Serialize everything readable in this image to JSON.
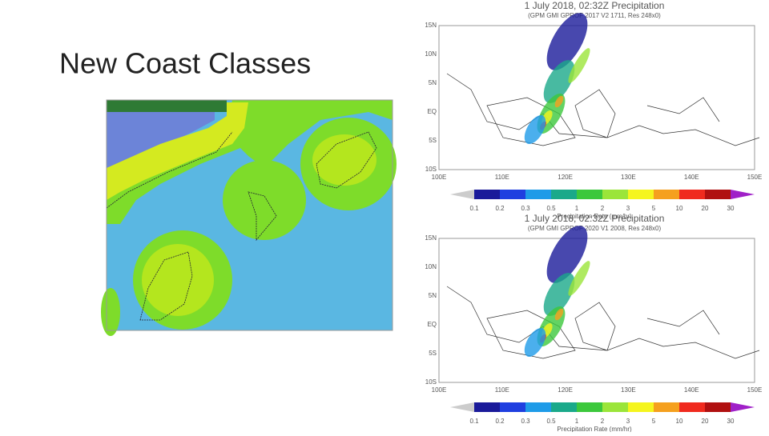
{
  "slide": {
    "title": "New Coast Classes"
  },
  "panels": [
    {
      "title": "1 July 2018, 02:32Z Precipitation",
      "subtitle": "(GPM GMI GPROF 2017 V2 1711, Res 248x0)",
      "lat_labels": [
        "15N",
        "10N",
        "5N",
        "EQ",
        "5S",
        "10S"
      ],
      "lon_labels": [
        "100E",
        "110E",
        "120E",
        "130E",
        "140E",
        "150E"
      ],
      "colorbar_labels": [
        "0.1",
        "0.2",
        "0.3",
        "0.5",
        "1",
        "2",
        "3",
        "5",
        "10",
        "20",
        "30"
      ],
      "colorbar_title": "Precipitation Rate (mm/hr)"
    },
    {
      "title": "1 July 2018, 02:32Z Precipitation",
      "subtitle": "(GPM GMI GPROF 2020 V1 2008, Res 248x0)",
      "lat_labels": [
        "15N",
        "10N",
        "5N",
        "EQ",
        "5S",
        "10S"
      ],
      "lon_labels": [
        "100E",
        "110E",
        "120E",
        "130E",
        "140E",
        "150E"
      ],
      "colorbar_labels": [
        "0.1",
        "0.2",
        "0.3",
        "0.5",
        "1",
        "2",
        "3",
        "5",
        "10",
        "20",
        "30"
      ],
      "colorbar_title": "Precipitation Rate (mm/hr)"
    }
  ]
}
